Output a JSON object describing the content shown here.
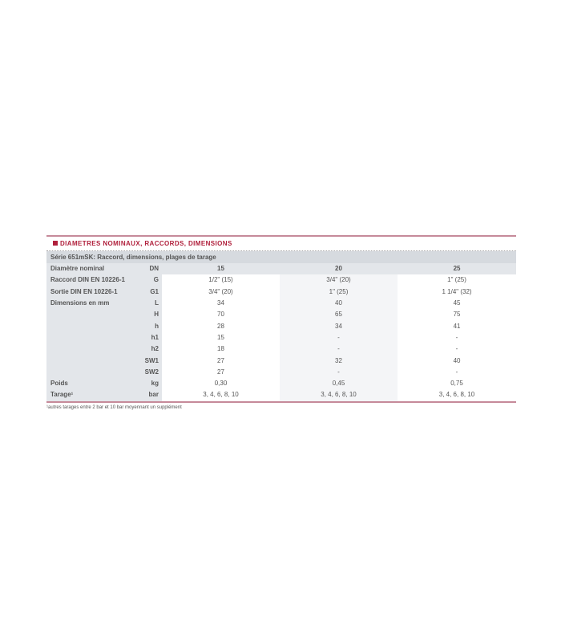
{
  "heading": "DIAMETRES NOMINAUX, RACCORDS, DIMENSIONS",
  "series_title": "Série 651mSK: Raccord, dimensions, plages de tarage",
  "columns": {
    "label": "Diamètre nominal",
    "unit": "DN",
    "values": [
      "15",
      "20",
      "25"
    ]
  },
  "rows": [
    {
      "label": "Raccord DIN EN 10226-1",
      "unit": "G",
      "values": [
        "1/2\" (15)",
        "3/4\" (20)",
        "1\" (25)"
      ]
    },
    {
      "label": "Sortie DIN EN 10226-1",
      "unit": "G1",
      "values": [
        "3/4\" (20)",
        "1\" (25)",
        "1 1/4\" (32)"
      ]
    },
    {
      "label": "Dimensions en mm",
      "unit": "L",
      "values": [
        "34",
        "40",
        "45"
      ]
    },
    {
      "label": "",
      "unit": "H",
      "values": [
        "70",
        "65",
        "75"
      ]
    },
    {
      "label": "",
      "unit": "h",
      "values": [
        "28",
        "34",
        "41"
      ]
    },
    {
      "label": "",
      "unit": "h1",
      "values": [
        "15",
        "-",
        "-"
      ]
    },
    {
      "label": "",
      "unit": "h2",
      "values": [
        "18",
        "-",
        "-"
      ]
    },
    {
      "label": "",
      "unit": "SW1",
      "values": [
        "27",
        "32",
        "40"
      ]
    },
    {
      "label": "",
      "unit": "SW2",
      "values": [
        "27",
        "-",
        "-"
      ]
    },
    {
      "label": "Poids",
      "unit": "kg",
      "values": [
        "0,30",
        "0,45",
        "0,75"
      ]
    },
    {
      "label": "Tarage¹",
      "unit": "bar",
      "values": [
        "3, 4, 6, 8, 10",
        "3, 4, 6, 8, 10",
        "3, 4, 6, 8, 10"
      ]
    }
  ],
  "footnote": "¹autres tarages entre 2 bar et 10 bar moyennant un supplément",
  "colors": {
    "accent": "#b0203c",
    "header_bg": "#d6dadf",
    "label_bg": "#e3e6ea"
  }
}
